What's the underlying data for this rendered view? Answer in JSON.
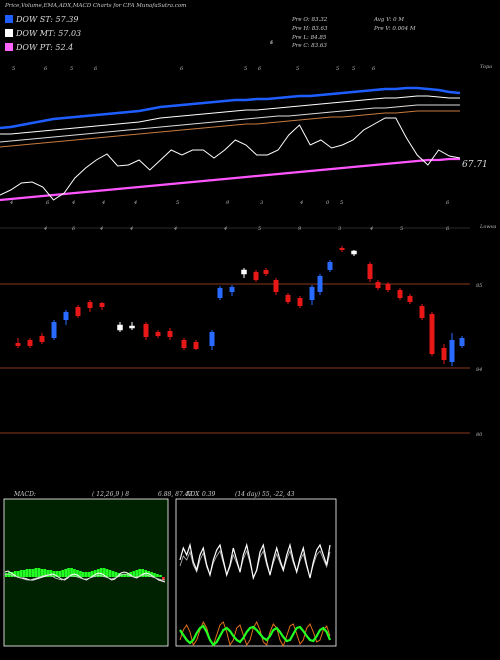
{
  "header": {
    "title": "Price,Volume,EMA,ADX,MACD Charts for CFA MunafaSutra.com"
  },
  "legend": [
    {
      "label": "DOW ST: 57.39",
      "color": "#1e5eff"
    },
    {
      "label": "DOW MT: 57.03",
      "color": "#ffffff"
    },
    {
      "label": "DOW PT: 52.4",
      "color": "#ff66ff"
    }
  ],
  "stats": {
    "open": "Pre  O: 83.32",
    "high": "Pre  H: 83.63",
    "low": "Pre  L: 84.85",
    "close": "Pre  C: 83.63",
    "avg_vol": "Avg V: 0  M",
    "prev_vol": "Pre  V: 0.004  M"
  },
  "top_panel": {
    "label": "Topa",
    "value_label": "67.71",
    "date_marks_top": [
      "5",
      "6",
      "5",
      "6",
      "6",
      "5",
      "6",
      "5",
      "5",
      "5",
      "6",
      "1"
    ],
    "date_marks_bottom": [
      "4",
      "6",
      "4",
      "4",
      "4",
      "5",
      "9",
      "3",
      "4",
      "5",
      "6"
    ],
    "mid_labels": [
      "6",
      "0"
    ],
    "ema_blue": [
      128,
      127,
      125,
      123,
      121,
      119,
      118,
      117,
      116,
      115,
      114,
      113,
      112,
      111,
      109,
      107,
      106,
      105,
      104,
      103,
      102,
      101,
      100,
      100,
      99,
      99,
      98,
      97,
      96,
      96,
      95,
      94,
      93,
      92,
      91,
      90,
      89,
      89,
      88,
      88,
      89,
      90,
      92,
      93
    ],
    "ema_white1": [
      134,
      134,
      133,
      132,
      131,
      130,
      129,
      128,
      127,
      126,
      125,
      124,
      123,
      122,
      120,
      118,
      117,
      116,
      115,
      114,
      113,
      112,
      111,
      110,
      110,
      109,
      108,
      107,
      106,
      105,
      104,
      103,
      102,
      101,
      100,
      99,
      98,
      98,
      97,
      96,
      96,
      97,
      98,
      98
    ],
    "ema_white2": [
      142,
      141,
      140,
      139,
      138,
      137,
      136,
      135,
      134,
      133,
      132,
      131,
      130,
      129,
      128,
      127,
      126,
      125,
      124,
      123,
      122,
      121,
      120,
      119,
      118,
      117,
      116,
      116,
      115,
      114,
      113,
      112,
      111,
      110,
      109,
      108,
      108,
      107,
      106,
      105,
      105,
      105,
      105,
      105
    ],
    "ema_orange": [
      147,
      146,
      145,
      144,
      143,
      142,
      141,
      140,
      139,
      138,
      137,
      136,
      135,
      134,
      133,
      132,
      131,
      130,
      129,
      128,
      127,
      126,
      125,
      124,
      124,
      123,
      122,
      121,
      120,
      119,
      118,
      117,
      117,
      116,
      115,
      114,
      113,
      113,
      112,
      111,
      111,
      111,
      111,
      111
    ],
    "ema_pink": [
      200,
      199,
      198,
      197,
      196,
      195,
      194,
      193,
      192,
      191,
      190,
      189,
      188,
      187,
      186,
      185,
      184,
      183,
      182,
      181,
      180,
      179,
      178,
      177,
      176,
      175,
      174,
      173,
      172,
      171,
      170,
      169,
      168,
      167,
      166,
      165,
      164,
      163,
      162,
      161,
      160,
      160,
      159,
      159
    ],
    "price": [
      195,
      190,
      183,
      182,
      187,
      200,
      193,
      178,
      168,
      160,
      154,
      166,
      165,
      160,
      170,
      160,
      150,
      155,
      150,
      150,
      158,
      150,
      140,
      145,
      155,
      155,
      150,
      135,
      125,
      145,
      140,
      148,
      145,
      140,
      130,
      124,
      118,
      118,
      138,
      155,
      165,
      150,
      156,
      158
    ]
  },
  "candles": {
    "label_top": "Lowva",
    "date_marks": [
      "4",
      "6",
      "4",
      "4",
      "4",
      "4",
      "5",
      "9",
      "3",
      "4",
      "5",
      "6"
    ],
    "levels": [
      {
        "v": "85",
        "y": 284
      },
      {
        "v": "84",
        "y": 368
      },
      {
        "v": "80",
        "y": 433
      }
    ],
    "items": [
      [
        18,
        338,
        348,
        343,
        346,
        "r"
      ],
      [
        30,
        338,
        348,
        340,
        346,
        "r"
      ],
      [
        42,
        333,
        344,
        336,
        342,
        "r"
      ],
      [
        54,
        320,
        340,
        322,
        338,
        "b"
      ],
      [
        66,
        310,
        325,
        312,
        320,
        "b"
      ],
      [
        78,
        305,
        318,
        307,
        316,
        "r"
      ],
      [
        90,
        300,
        312,
        302,
        308,
        "r"
      ],
      [
        102,
        302,
        310,
        303,
        307,
        "r"
      ],
      [
        120,
        322,
        332,
        325,
        330,
        "w"
      ],
      [
        132,
        322,
        330,
        326,
        328,
        "w"
      ],
      [
        146,
        322,
        340,
        324,
        337,
        "r"
      ],
      [
        158,
        330,
        338,
        332,
        336,
        "r"
      ],
      [
        170,
        328,
        340,
        331,
        337,
        "r"
      ],
      [
        184,
        338,
        350,
        340,
        348,
        "r"
      ],
      [
        196,
        340,
        350,
        342,
        349,
        "r"
      ],
      [
        212,
        330,
        350,
        332,
        346,
        "b"
      ],
      [
        220,
        286,
        300,
        288,
        298,
        "b"
      ],
      [
        232,
        285,
        296,
        287,
        292,
        "b"
      ],
      [
        244,
        268,
        278,
        270,
        274,
        "w"
      ],
      [
        256,
        270,
        282,
        272,
        280,
        "r"
      ],
      [
        266,
        268,
        276,
        270,
        274,
        "r"
      ],
      [
        276,
        278,
        295,
        280,
        292,
        "r"
      ],
      [
        288,
        293,
        304,
        295,
        302,
        "r"
      ],
      [
        300,
        296,
        308,
        298,
        306,
        "r"
      ],
      [
        312,
        285,
        305,
        287,
        300,
        "b"
      ],
      [
        320,
        274,
        295,
        276,
        292,
        "b"
      ],
      [
        330,
        260,
        272,
        262,
        270,
        "b"
      ],
      [
        342,
        246,
        252,
        248,
        250,
        "r"
      ],
      [
        354,
        250,
        256,
        251,
        254,
        "w"
      ],
      [
        370,
        262,
        282,
        264,
        279,
        "r"
      ],
      [
        378,
        280,
        290,
        282,
        288,
        "r"
      ],
      [
        388,
        282,
        292,
        284,
        290,
        "r"
      ],
      [
        400,
        288,
        300,
        290,
        298,
        "r"
      ],
      [
        410,
        294,
        304,
        296,
        302,
        "r"
      ],
      [
        422,
        304,
        320,
        306,
        318,
        "r"
      ],
      [
        432,
        312,
        356,
        314,
        354,
        "r"
      ],
      [
        444,
        344,
        364,
        348,
        360,
        "r"
      ],
      [
        452,
        333,
        366,
        340,
        362,
        "b"
      ],
      [
        462,
        336,
        348,
        338,
        346,
        "b"
      ]
    ]
  },
  "macd": {
    "label": "MACD:",
    "params": "( 12,26,9 ) 8",
    "values": "6.88, 87.47",
    "hist": [
      4,
      5,
      5,
      6,
      6,
      7,
      7,
      8,
      8,
      8,
      9,
      9,
      8,
      8,
      7,
      7,
      6,
      6,
      6,
      7,
      8,
      9,
      9,
      8,
      7,
      6,
      5,
      5,
      5,
      6,
      7,
      8,
      9,
      9,
      8,
      7,
      6,
      5,
      4,
      3,
      3,
      4,
      5,
      6,
      7,
      8,
      8,
      7,
      6,
      5,
      4,
      3,
      2,
      -3
    ],
    "line1": [
      572,
      571,
      573,
      575,
      577,
      578,
      578,
      579,
      580,
      580,
      579,
      578,
      577,
      576,
      575,
      574,
      575,
      577,
      579,
      580,
      578,
      575,
      574,
      575,
      577,
      579,
      580,
      578,
      576,
      574,
      573,
      574,
      576,
      578,
      580,
      579,
      576,
      573,
      572,
      573,
      575,
      577,
      578,
      576,
      574,
      573,
      574,
      576,
      578,
      580,
      581,
      582
    ],
    "line2": [
      575,
      574,
      575,
      576,
      577,
      578,
      579,
      580,
      580,
      579,
      578,
      577,
      576,
      575,
      575,
      576,
      578,
      579,
      580,
      579,
      577,
      576,
      576,
      577,
      578,
      579,
      579,
      578,
      577,
      576,
      575,
      576,
      577,
      578,
      579,
      578,
      577,
      575,
      574,
      575,
      576,
      577,
      577,
      576,
      575,
      575,
      576,
      577,
      578,
      579,
      580,
      580
    ]
  },
  "adx": {
    "label": "ADX",
    "values": "0.39",
    "params": "(14  day) 55,  -22,  43",
    "white": [
      560,
      548,
      555,
      545,
      562,
      570,
      555,
      548,
      565,
      575,
      560,
      550,
      545,
      560,
      575,
      565,
      548,
      560,
      572,
      555,
      545,
      560,
      578,
      570,
      552,
      545,
      562,
      575,
      560,
      548,
      560,
      570,
      555,
      545,
      560,
      572,
      558,
      548,
      565,
      578,
      562,
      550,
      545,
      555,
      565,
      545
    ],
    "white_thin": [
      566,
      556,
      560,
      552,
      565,
      572,
      560,
      553,
      567,
      575,
      563,
      556,
      551,
      563,
      575,
      567,
      555,
      563,
      572,
      559,
      551,
      563,
      577,
      571,
      557,
      551,
      565,
      575,
      563,
      554,
      563,
      571,
      559,
      551,
      563,
      572,
      561,
      554,
      567,
      577,
      565,
      555,
      551,
      559,
      567,
      552
    ],
    "green": [
      630,
      635,
      640,
      643,
      640,
      633,
      628,
      626,
      632,
      640,
      645,
      642,
      636,
      630,
      628,
      631,
      636,
      640,
      642,
      638,
      632,
      628,
      627,
      630,
      634,
      638,
      640,
      636,
      630,
      628,
      632,
      637,
      641,
      640,
      634,
      628,
      627,
      631,
      636,
      640,
      641,
      636,
      630,
      628,
      632,
      640
    ],
    "orange": [
      640,
      630,
      625,
      632,
      645,
      640,
      630,
      622,
      628,
      640,
      645,
      635,
      625,
      622,
      632,
      645,
      640,
      628,
      625,
      635,
      645,
      640,
      628,
      622,
      630,
      642,
      645,
      632,
      624,
      628,
      640,
      646,
      636,
      626,
      624,
      634,
      644,
      640,
      628,
      624,
      632,
      642,
      640,
      630,
      626,
      636
    ]
  }
}
